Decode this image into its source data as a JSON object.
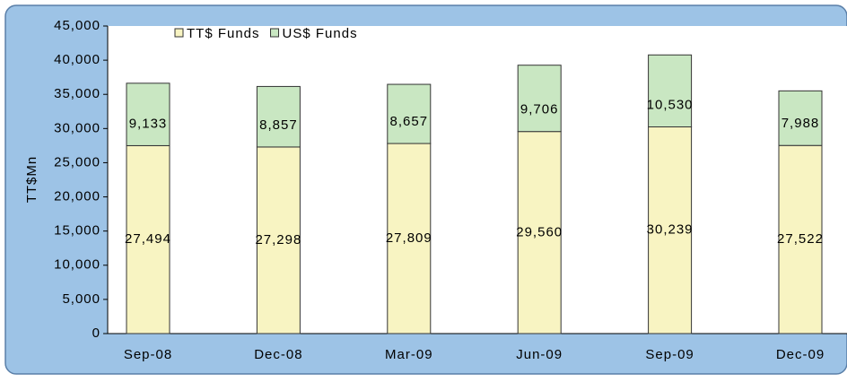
{
  "chart_data": {
    "type": "stacked_bar",
    "y_label": "TT$Mn",
    "categories": [
      "Sep-08",
      "Dec-08",
      "Mar-09",
      "Jun-09",
      "Sep-09",
      "Dec-09"
    ],
    "series": [
      {
        "name": "TT$ Funds",
        "color": "#f8f4c2",
        "values": [
          27494,
          27298,
          27809,
          29560,
          30239,
          27522
        ],
        "value_labels": [
          "27,494",
          "27,298",
          "27,809",
          "29,560",
          "30,239",
          "27,522"
        ]
      },
      {
        "name": "US$ Funds",
        "color": "#c9e7c2",
        "values": [
          9133,
          8857,
          8657,
          9706,
          10530,
          7988
        ],
        "value_labels": [
          "9,133",
          "8,857",
          "8,657",
          "9,706",
          "10,530",
          "7,988"
        ]
      }
    ],
    "ylim": [
      0,
      45000
    ],
    "yticks": [
      0,
      {
        "value": 5000,
        "label": "5,000"
      },
      {
        "value": 10000,
        "label": "10,000"
      },
      {
        "value": 15000,
        "label": "15,000"
      },
      {
        "value": 20000,
        "label": "20,000"
      },
      {
        "value": 25000,
        "label": "25,000"
      },
      {
        "value": 30000,
        "label": "30,000"
      },
      {
        "value": 35000,
        "label": "35,000"
      },
      {
        "value": 40000,
        "label": "40,000"
      },
      {
        "value": 45000,
        "label": "45,000"
      }
    ],
    "legend": "top-left"
  }
}
